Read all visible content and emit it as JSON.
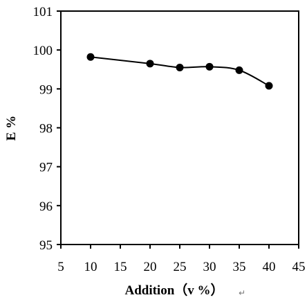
{
  "chart_data": {
    "type": "line",
    "xlabel": "Addition（v %）",
    "ylabel": "E %",
    "xlim": [
      5,
      45
    ],
    "ylim": [
      95,
      101
    ],
    "xticks": [
      "5",
      "10",
      "15",
      "20",
      "25",
      "30",
      "35",
      "40",
      "45"
    ],
    "yticks": [
      "95",
      "96",
      "97",
      "98",
      "99",
      "100",
      "101"
    ],
    "grid": false,
    "series": [
      {
        "x": [
          10,
          20,
          25,
          30,
          35,
          40
        ],
        "y": [
          99.82,
          99.65,
          99.55,
          99.57,
          99.48,
          99.08
        ],
        "color": "#000000",
        "marker": "circle"
      }
    ],
    "trailing_mark": "↵"
  }
}
